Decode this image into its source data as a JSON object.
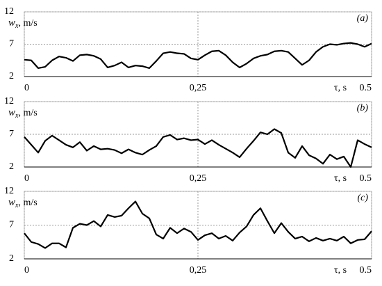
{
  "chart_data": [
    {
      "type": "line",
      "panel_label": "(a)",
      "ylabel_symbol": "w",
      "ylabel_subscript": "x",
      "ylabel_unit": ", m/s",
      "xlabel": "τ, s",
      "x": [
        0,
        0.01,
        0.02,
        0.03,
        0.04,
        0.05,
        0.06,
        0.07,
        0.08,
        0.09,
        0.1,
        0.11,
        0.12,
        0.13,
        0.14,
        0.15,
        0.16,
        0.17,
        0.18,
        0.19,
        0.2,
        0.21,
        0.22,
        0.23,
        0.24,
        0.25,
        0.26,
        0.27,
        0.28,
        0.29,
        0.3,
        0.31,
        0.32,
        0.33,
        0.34,
        0.35,
        0.36,
        0.37,
        0.38,
        0.39,
        0.4,
        0.41,
        0.42,
        0.43,
        0.44,
        0.45,
        0.46,
        0.47,
        0.48,
        0.49,
        0.5
      ],
      "series": [
        {
          "color": "#000000",
          "values": [
            4.6,
            4.5,
            3.3,
            3.5,
            4.5,
            5.1,
            4.9,
            4.4,
            5.3,
            5.4,
            5.2,
            4.7,
            3.4,
            3.7,
            4.2,
            3.4,
            3.7,
            3.6,
            3.3,
            4.4,
            5.6,
            5.8,
            5.6,
            5.5,
            4.8,
            4.6,
            5.3,
            5.9,
            6.0,
            5.3,
            4.2,
            3.4,
            4.0,
            4.8,
            5.2,
            5.4,
            5.9,
            6.0,
            5.8,
            4.8,
            3.8,
            4.5,
            5.8,
            6.6,
            7.0,
            6.9,
            7.1,
            7.2,
            7.0,
            6.6,
            7.1
          ]
        }
      ],
      "xlim": [
        0,
        0.5
      ],
      "ylim": [
        2,
        12
      ],
      "yticks": [
        2,
        7,
        12
      ],
      "xticks": [
        0,
        {
          "value": 0.25,
          "label": "0,25"
        },
        0.5
      ],
      "grid": true
    },
    {
      "type": "line",
      "panel_label": "(b)",
      "ylabel_symbol": "w",
      "ylabel_subscript": "x",
      "ylabel_unit": ", m/s",
      "xlabel": "τ, s",
      "x": [
        0,
        0.01,
        0.02,
        0.03,
        0.04,
        0.05,
        0.06,
        0.07,
        0.08,
        0.09,
        0.1,
        0.11,
        0.12,
        0.13,
        0.14,
        0.15,
        0.16,
        0.17,
        0.18,
        0.19,
        0.2,
        0.21,
        0.22,
        0.23,
        0.24,
        0.25,
        0.26,
        0.27,
        0.28,
        0.29,
        0.3,
        0.31,
        0.32,
        0.33,
        0.34,
        0.35,
        0.36,
        0.37,
        0.38,
        0.39,
        0.4,
        0.41,
        0.42,
        0.43,
        0.44,
        0.45,
        0.46,
        0.47,
        0.48,
        0.49,
        0.5
      ],
      "series": [
        {
          "color": "#000000",
          "values": [
            6.6,
            5.4,
            4.2,
            6.0,
            6.8,
            6.1,
            5.4,
            5.0,
            5.8,
            4.5,
            5.2,
            4.7,
            4.8,
            4.6,
            4.1,
            4.7,
            4.2,
            3.9,
            4.6,
            5.2,
            6.6,
            6.9,
            6.2,
            6.4,
            6.1,
            6.2,
            5.5,
            6.1,
            5.4,
            4.8,
            4.2,
            3.5,
            4.8,
            6.0,
            7.3,
            7.0,
            7.8,
            7.2,
            4.2,
            3.4,
            5.2,
            3.8,
            3.3,
            2.5,
            3.9,
            3.2,
            3.6,
            2.0,
            6.1,
            5.5,
            5.0
          ]
        }
      ],
      "xlim": [
        0,
        0.5
      ],
      "ylim": [
        2,
        12
      ],
      "yticks": [
        2,
        7,
        12
      ],
      "xticks": [
        0,
        {
          "value": 0.25,
          "label": "0,25"
        },
        0.5
      ],
      "grid": true
    },
    {
      "type": "line",
      "panel_label": "(c)",
      "ylabel_symbol": "w",
      "ylabel_subscript": "x",
      "ylabel_unit": ", m/s",
      "xlabel": "τ, s",
      "x": [
        0,
        0.01,
        0.02,
        0.03,
        0.04,
        0.05,
        0.06,
        0.07,
        0.08,
        0.09,
        0.1,
        0.11,
        0.12,
        0.13,
        0.14,
        0.15,
        0.16,
        0.17,
        0.18,
        0.19,
        0.2,
        0.21,
        0.22,
        0.23,
        0.24,
        0.25,
        0.26,
        0.27,
        0.28,
        0.29,
        0.3,
        0.31,
        0.32,
        0.33,
        0.34,
        0.35,
        0.36,
        0.37,
        0.38,
        0.39,
        0.4,
        0.41,
        0.42,
        0.43,
        0.44,
        0.45,
        0.46,
        0.47,
        0.48,
        0.49,
        0.5
      ],
      "series": [
        {
          "color": "#000000",
          "values": [
            5.8,
            4.5,
            4.2,
            3.6,
            4.3,
            4.3,
            3.7,
            6.6,
            7.2,
            7.0,
            7.6,
            6.8,
            8.5,
            8.2,
            8.4,
            9.5,
            10.5,
            8.7,
            8.0,
            5.6,
            5.0,
            6.6,
            5.8,
            6.5,
            6.0,
            4.8,
            5.5,
            5.8,
            5.0,
            5.4,
            4.7,
            5.9,
            6.8,
            8.5,
            9.5,
            7.6,
            5.8,
            7.3,
            6.0,
            5.0,
            5.3,
            4.6,
            5.1,
            4.7,
            5.0,
            4.7,
            5.3,
            4.3,
            4.8,
            4.9,
            6.1
          ]
        }
      ],
      "xlim": [
        0,
        0.5
      ],
      "ylim": [
        2,
        12
      ],
      "yticks": [
        2,
        7,
        12
      ],
      "xticks": [
        0,
        {
          "value": 0.25,
          "label": "0,25"
        },
        0.5
      ],
      "grid": true
    }
  ]
}
